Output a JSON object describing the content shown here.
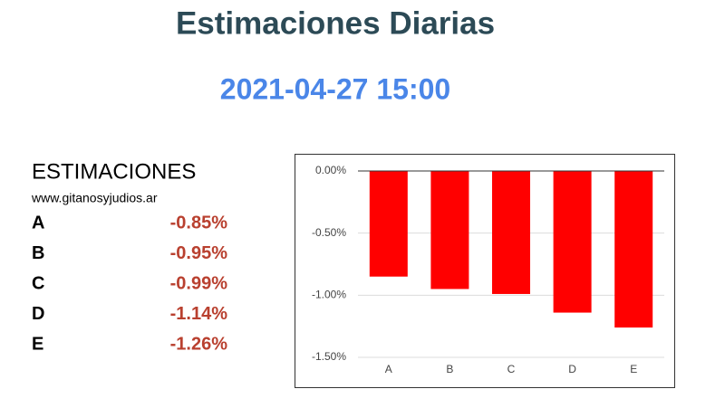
{
  "header": {
    "title": "Estimaciones Diarias",
    "datetime": "2021-04-27 15:00"
  },
  "panel": {
    "heading": "ESTIMACIONES",
    "source": "www.gitanosyjudios.ar"
  },
  "chart_data": {
    "type": "bar",
    "categories": [
      "A",
      "B",
      "C",
      "D",
      "E"
    ],
    "values": [
      -0.85,
      -0.95,
      -0.99,
      -1.14,
      -1.26
    ],
    "value_labels": [
      "-0.85%",
      "-0.95%",
      "-0.99%",
      "-1.14%",
      "-1.26%"
    ],
    "color": "#ff0000",
    "ylim": [
      -1.5,
      0
    ],
    "yticks": [
      {
        "value": 0,
        "label": "0.00%"
      },
      {
        "value": -0.5,
        "label": "-0.50%"
      },
      {
        "value": -1,
        "label": "-1.00%"
      },
      {
        "value": -1.5,
        "label": "-1.50%"
      }
    ],
    "grid": true
  }
}
